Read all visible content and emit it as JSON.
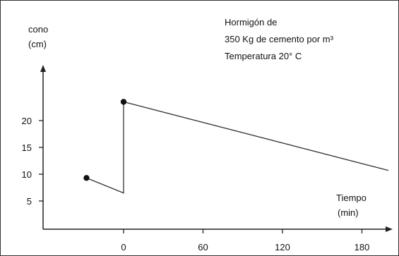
{
  "chart_data": {
    "type": "line",
    "title_lines": [
      "Hormigón de",
      "350 Kg de cemento por m³",
      "Temperatura 20° C"
    ],
    "ylabel_lines": [
      "cono",
      "(cm)"
    ],
    "xlabel_lines": [
      "Tiempo",
      "(min)"
    ],
    "xticks": [
      0,
      60,
      120,
      180
    ],
    "yticks": [
      5,
      10,
      15,
      20
    ],
    "xlim": [
      -60,
      200
    ],
    "ylim": [
      0,
      30
    ],
    "series": [
      {
        "x": [
          -28,
          0,
          0,
          200
        ],
        "y": [
          9.3,
          6.5,
          23.5,
          10.7
        ]
      }
    ],
    "markers": [
      {
        "x": -28,
        "y": 9.3
      },
      {
        "x": 0,
        "y": 23.5
      }
    ]
  }
}
